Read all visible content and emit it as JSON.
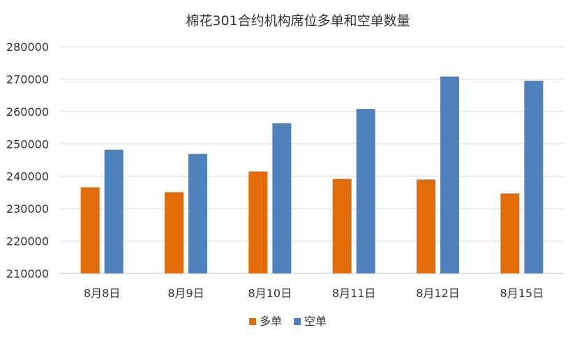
{
  "chart_data": {
    "type": "bar",
    "title": "棉花301合约机构席位多单和空单数量",
    "categories": [
      "8月8日",
      "8月9日",
      "8月10日",
      "8月11日",
      "8月12日",
      "8月15日"
    ],
    "series": [
      {
        "name": "多单",
        "color": "#E36C0A",
        "values": [
          236600,
          235100,
          241500,
          239200,
          239000,
          234700
        ]
      },
      {
        "name": "空单",
        "color": "#4F81BD",
        "values": [
          248200,
          246900,
          256400,
          260800,
          270800,
          269500
        ]
      }
    ],
    "ylim": [
      210000,
      280000
    ],
    "ytick_step": 10000,
    "ytick_labels": [
      "210000",
      "220000",
      "230000",
      "240000",
      "250000",
      "260000",
      "270000",
      "280000"
    ],
    "grid": true,
    "legend": "bottom",
    "xlabel": "",
    "ylabel": ""
  }
}
